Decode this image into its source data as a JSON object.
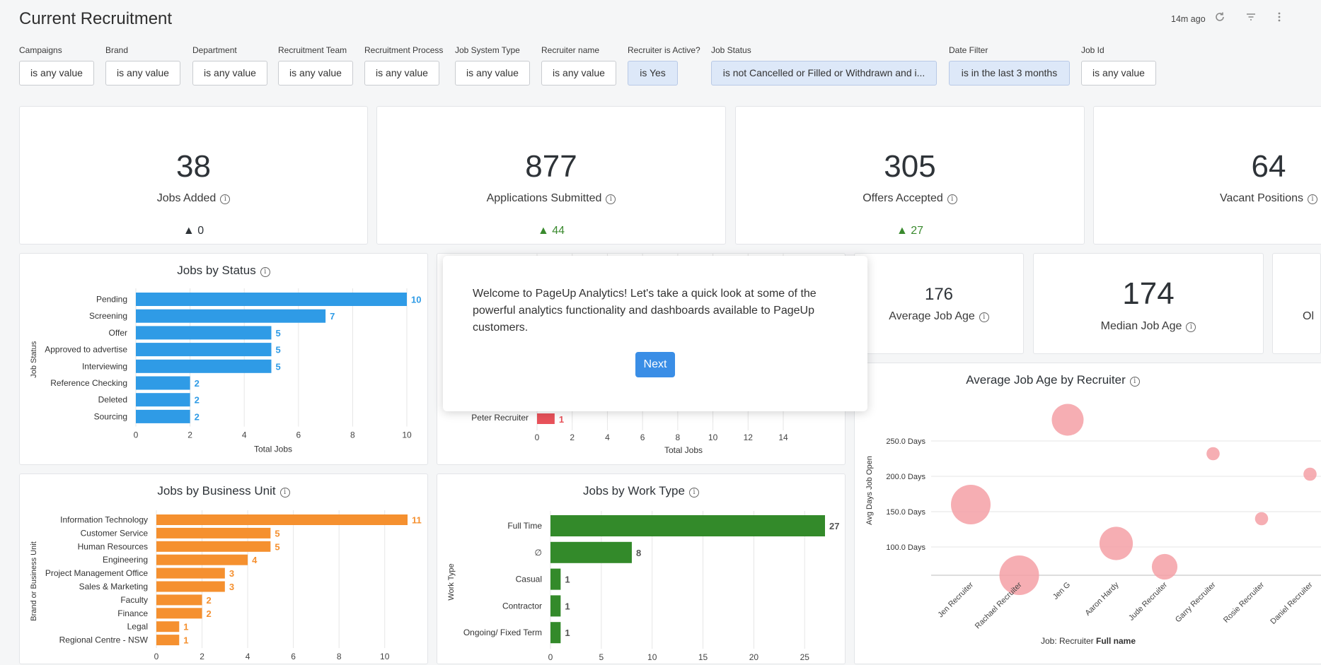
{
  "header": {
    "title": "Current Recruitment",
    "updated": "14m ago",
    "icons": [
      "refresh-icon",
      "filter-icon",
      "more-vert-icon"
    ]
  },
  "filters": [
    {
      "label": "Campaigns",
      "value": "is any value",
      "active": false
    },
    {
      "label": "Brand",
      "value": "is any value",
      "active": false
    },
    {
      "label": "Department",
      "value": "is any value",
      "active": false
    },
    {
      "label": "Recruitment Team",
      "value": "is any value",
      "active": false
    },
    {
      "label": "Recruitment Process",
      "value": "is any value",
      "active": false
    },
    {
      "label": "Job System Type",
      "value": "is any value",
      "active": false
    },
    {
      "label": "Recruiter name",
      "value": "is any value",
      "active": false
    },
    {
      "label": "Recruiter is Active?",
      "value": "is Yes",
      "active": true
    },
    {
      "label": "Job Status",
      "value": "is not Cancelled or Filled or Withdrawn and i...",
      "active": true
    },
    {
      "label": "Date Filter",
      "value": "is in the last 3 months",
      "active": true
    },
    {
      "label": "Job Id",
      "value": "is any value",
      "active": false
    }
  ],
  "kpis": [
    {
      "value": "38",
      "label": "Jobs Added",
      "delta": "▲ 0",
      "delta_color": "#2e3338"
    },
    {
      "value": "877",
      "label": "Applications Submitted",
      "delta": "▲ 44",
      "delta_color": "#3a8a2e"
    },
    {
      "value": "305",
      "label": "Offers Accepted",
      "delta": "▲ 27",
      "delta_color": "#3a8a2e"
    },
    {
      "value": "64",
      "label": "Vacant Positions"
    }
  ],
  "age_kpis": [
    {
      "value": "176",
      "label": "Average Job Age"
    },
    {
      "value": "174",
      "label": "Median Job Age"
    },
    {
      "label": "Ol"
    }
  ],
  "modal": {
    "text": "Welcome to PageUp Analytics! Let's take a quick look at some of the powerful analytics functionality and dashboards available to PageUp customers.",
    "button": "Next"
  },
  "chart_data": [
    {
      "type": "bar",
      "title": "Jobs by Status",
      "orientation": "horizontal",
      "color": "#2f9be6",
      "categories": [
        "Pending",
        "Screening",
        "Offer",
        "Approved to advertise",
        "Interviewing",
        "Reference Checking",
        "Deleted",
        "Sourcing"
      ],
      "values": [
        10,
        7,
        5,
        5,
        5,
        2,
        2,
        2
      ],
      "xlabel": "Total Jobs",
      "ylabel": "Job Status",
      "xlim": [
        0,
        10
      ],
      "xticks": [
        0,
        2,
        4,
        6,
        8,
        10
      ]
    },
    {
      "type": "bar",
      "title": "",
      "orientation": "horizontal",
      "color": "#e8525a",
      "categories": [
        "Peter Recruiter"
      ],
      "values": [
        1
      ],
      "xlabel": "Total Jobs",
      "xlim": [
        0,
        14
      ],
      "xticks": [
        0,
        2,
        4,
        6,
        8,
        10,
        12,
        14
      ]
    },
    {
      "type": "bar",
      "title": "Jobs by Business Unit",
      "orientation": "horizontal",
      "color": "#f5902f",
      "categories": [
        "Information Technology",
        "Customer Service",
        "Human Resources",
        "Engineering",
        "Project Management Office",
        "Sales & Marketing",
        "Faculty",
        "Finance",
        "Legal",
        "Regional Centre - NSW"
      ],
      "values": [
        11,
        5,
        5,
        4,
        3,
        3,
        2,
        2,
        1,
        1
      ],
      "ylabel": "Brand or Business Unit",
      "xlim": [
        0,
        11
      ],
      "xticks": [
        0,
        2,
        4,
        6,
        8,
        10
      ]
    },
    {
      "type": "bar",
      "title": "Jobs by Work Type",
      "orientation": "horizontal",
      "color": "#338a2a",
      "categories": [
        "Full Time",
        "∅",
        "Casual",
        "Contractor",
        "Ongoing/ Fixed Term"
      ],
      "values": [
        27,
        8,
        1,
        1,
        1
      ],
      "ylabel": "Work Type",
      "xlim": [
        0,
        27
      ],
      "xticks": [
        0,
        5,
        10,
        15,
        20,
        25
      ]
    },
    {
      "type": "scatter",
      "title": "Average Job Age by Recruiter",
      "color": "#f4a0a6",
      "categories": [
        "Jen Recruiter",
        "Rachael Recruiter",
        "Jen G",
        "Aaron Hardy",
        "Jude Recruiter",
        "Garry Recruiter",
        "Rosie Recruiter",
        "Daniel Recruiter"
      ],
      "values": [
        160,
        60,
        280,
        105,
        72,
        232,
        140,
        203
      ],
      "sizes": [
        4,
        4,
        3,
        3.2,
        2.2,
        0.6,
        0.6,
        0.6
      ],
      "xlabel": "Job: Recruiter",
      "xlabel_bold": "Full name",
      "ylabel": "Avg Days Job Open",
      "ylim": [
        60,
        300
      ],
      "yticks": [
        100,
        150,
        200,
        250
      ],
      "ytick_labels": [
        "100.0 Days",
        "150.0 Days",
        "200.0 Days",
        "250.0 Days"
      ]
    }
  ]
}
